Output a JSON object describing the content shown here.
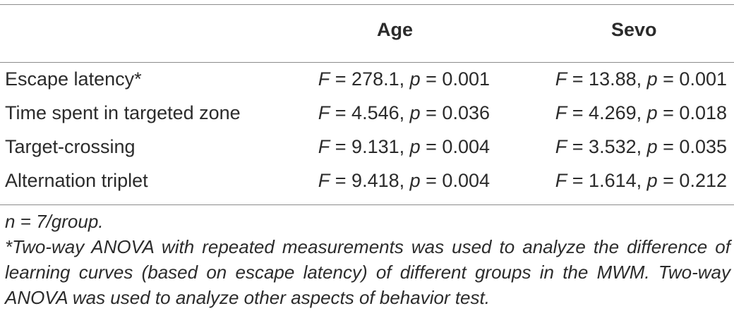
{
  "table": {
    "headers": {
      "row_label": "",
      "age": "Age",
      "sevo": "Sevo"
    },
    "rows": [
      {
        "label": "Escape latency*",
        "age": {
          "f_symbol": "F",
          "f_value": " = 278.1, ",
          "p_symbol": "p",
          "p_value": " = 0.001"
        },
        "sevo": {
          "f_symbol": "F",
          "f_value": " = 13.88, ",
          "p_symbol": "p",
          "p_value": " = 0.001"
        }
      },
      {
        "label": "Time spent in targeted zone",
        "age": {
          "f_symbol": "F",
          "f_value": " = 4.546, ",
          "p_symbol": "p",
          "p_value": " = 0.036"
        },
        "sevo": {
          "f_symbol": "F",
          "f_value": " = 4.269, ",
          "p_symbol": "p",
          "p_value": " = 0.018"
        }
      },
      {
        "label": "Target-crossing",
        "age": {
          "f_symbol": "F",
          "f_value": " = 9.131, ",
          "p_symbol": "p",
          "p_value": " = 0.004"
        },
        "sevo": {
          "f_symbol": "F",
          "f_value": " = 3.532, ",
          "p_symbol": "p",
          "p_value": " = 0.035"
        }
      },
      {
        "label": "Alternation triplet",
        "age": {
          "f_symbol": "F",
          "f_value": " = 9.418, ",
          "p_symbol": "p",
          "p_value": " = 0.004"
        },
        "sevo": {
          "f_symbol": "F",
          "f_value": " = 1.614, ",
          "p_symbol": "p",
          "p_value": " = 0.212"
        }
      }
    ]
  },
  "footnotes": [
    "n = 7/group.",
    "*Two-way ANOVA with repeated measurements was used to analyze the difference of learning curves (based on escape latency) of different groups in the MWM. Two-way ANOVA was used to analyze other aspects of behavior test."
  ]
}
